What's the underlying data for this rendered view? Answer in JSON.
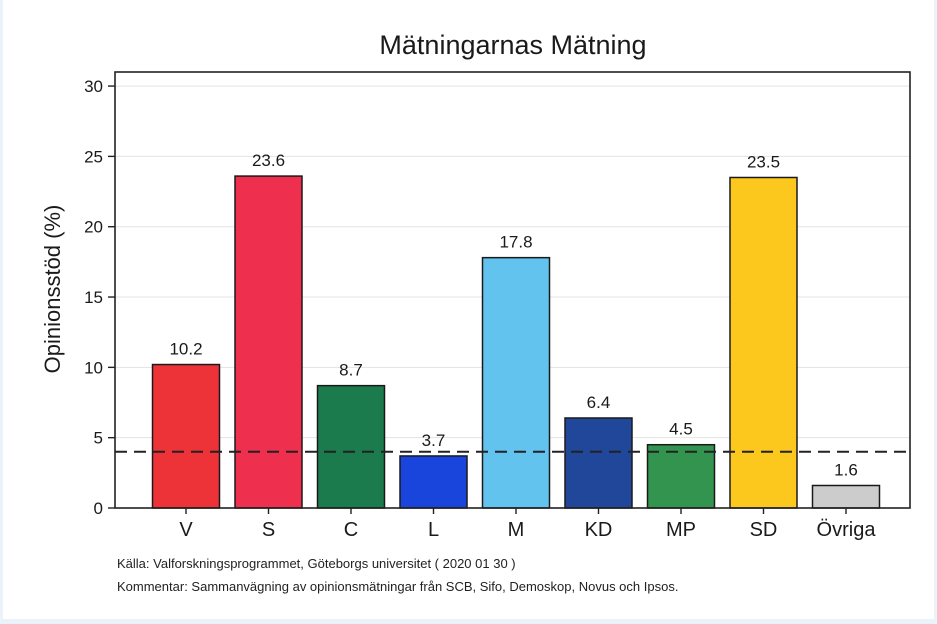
{
  "chart_data": {
    "type": "bar",
    "title": "Mätningarnas Mätning",
    "ylabel": "Opinionsstöd (%)",
    "xlabel": "",
    "ylim": [
      0,
      31
    ],
    "yticks": [
      0,
      5,
      10,
      15,
      20,
      25,
      30
    ],
    "grid": true,
    "categories": [
      "V",
      "S",
      "C",
      "L",
      "M",
      "KD",
      "MP",
      "SD",
      "Övriga"
    ],
    "values": [
      10.2,
      23.6,
      8.7,
      3.7,
      17.8,
      6.4,
      4.5,
      23.5,
      1.6
    ],
    "value_labels": [
      "10.2",
      "23.6",
      "8.7",
      "3.7",
      "17.8",
      "6.4",
      "4.5",
      "23.5",
      "1.6"
    ],
    "colors": [
      "#ee3338",
      "#ee2f4e",
      "#1b7b4c",
      "#1a45dc",
      "#62c3ef",
      "#21479a",
      "#33944f",
      "#fdc81d",
      "#cccccc"
    ],
    "reference_line": {
      "value": 4,
      "style": "dashed",
      "color": "#222222"
    }
  },
  "footer": {
    "source": "Källa: Valforskningsprogrammet, Göteborgs universitet ( 2020 01 30 )",
    "comment": "Kommentar: Sammanvägning av opinionsmätningar från SCB, Sifo, Demoskop, Novus och Ipsos."
  }
}
